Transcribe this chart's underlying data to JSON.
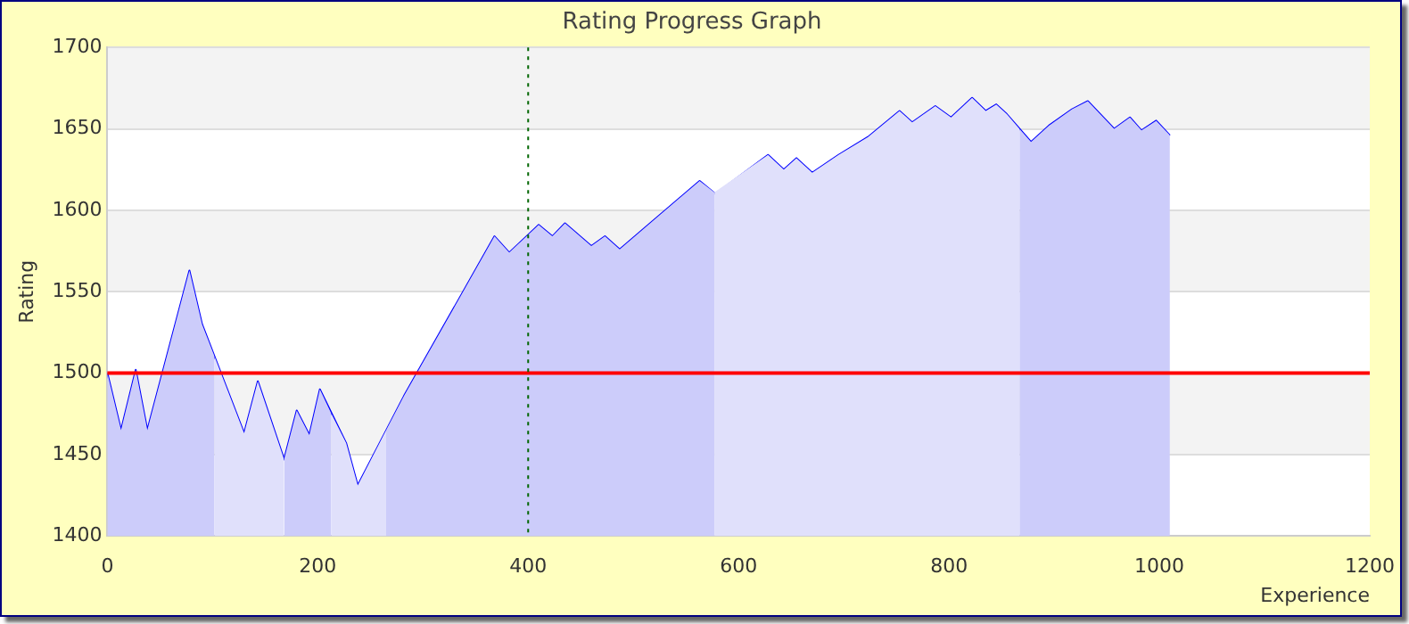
{
  "chart_data": {
    "type": "area",
    "title": "Rating Progress Graph",
    "xlabel": "Experience",
    "ylabel": "Rating",
    "x": [
      0,
      13,
      27,
      38,
      78,
      90,
      130,
      143,
      168,
      180,
      192,
      202,
      227,
      238,
      282,
      368,
      382,
      410,
      423,
      435,
      460,
      473,
      487,
      563,
      578,
      628,
      643,
      655,
      670,
      695,
      723,
      753,
      765,
      787,
      802,
      822,
      835,
      845,
      855,
      878,
      895,
      917,
      932,
      957,
      972,
      983,
      997,
      1010
    ],
    "series": [
      {
        "color": "#ccccfa",
        "x": [
          0,
          13,
          27,
          38,
          78,
          90,
          102
        ],
        "values": [
          1500,
          1465,
          1502,
          1465,
          1563,
          1530,
          1510
        ]
      },
      {
        "color": "#e0e0fb",
        "x": [
          102,
          130,
          143,
          168
        ],
        "values": [
          1510,
          1463,
          1495,
          1447
        ]
      },
      {
        "color": "#ccccfa",
        "x": [
          168,
          180,
          192,
          202,
          213
        ],
        "values": [
          1447,
          1477,
          1462,
          1490,
          1475
        ]
      },
      {
        "color": "#e0e0fb",
        "x": [
          213,
          227,
          238,
          265
        ],
        "values": [
          1475,
          1457,
          1431,
          1465
        ]
      },
      {
        "color": "#ccccfa",
        "x": [
          265,
          282,
          368,
          382,
          410,
          423,
          435,
          460,
          473,
          487,
          563,
          577
        ],
        "values": [
          1465,
          1486,
          1584,
          1574,
          1591,
          1584,
          1592,
          1578,
          1584,
          1576,
          1618,
          1611
        ]
      },
      {
        "color": "#e0e0fb",
        "x": [
          577,
          628,
          643,
          655,
          670,
          695,
          723,
          753,
          765,
          787,
          802,
          822,
          835,
          845,
          855,
          867
        ],
        "values": [
          1611,
          1634,
          1625,
          1632,
          1623,
          1634,
          1645,
          1661,
          1654,
          1664,
          1657,
          1669,
          1661,
          1665,
          1659,
          1650
        ]
      },
      {
        "color": "#ccccfa",
        "x": [
          867,
          878,
          895,
          917,
          932,
          957,
          972,
          983,
          997,
          1010
        ],
        "values": [
          1650,
          1642,
          1652,
          1662,
          1667,
          1650,
          1657,
          1649,
          1655,
          1646
        ]
      },
      {
        "type": "line",
        "color": "#0000ff",
        "values": [
          1500,
          1465,
          1502,
          1465,
          1563,
          1530,
          1463,
          1495,
          1447,
          1477,
          1462,
          1490,
          1457,
          1431,
          1486,
          1584,
          1574,
          1591,
          1584,
          1592,
          1578,
          1584,
          1576,
          1618,
          1610,
          1634,
          1625,
          1632,
          1623,
          1634,
          1645,
          1661,
          1654,
          1664,
          1657,
          1669,
          1661,
          1665,
          1659,
          1642,
          1652,
          1662,
          1667,
          1650,
          1657,
          1649,
          1655,
          1646
        ]
      }
    ],
    "xlim": [
      0,
      1200
    ],
    "xticks": [
      0,
      200,
      400,
      600,
      800,
      1000,
      1200
    ],
    "ylim": [
      1400,
      1700
    ],
    "yticks": [
      1400,
      1450,
      1500,
      1550,
      1600,
      1650,
      1700
    ],
    "grid": "y",
    "legend": false,
    "marker": "none",
    "line_style": "solid",
    "ref_lines": [
      {
        "axis": "y",
        "value": 1500,
        "color": "#ff0000",
        "line_style": "solid"
      },
      {
        "axis": "x",
        "value": 400,
        "color": "#006600",
        "line_style": "dotted"
      }
    ]
  }
}
